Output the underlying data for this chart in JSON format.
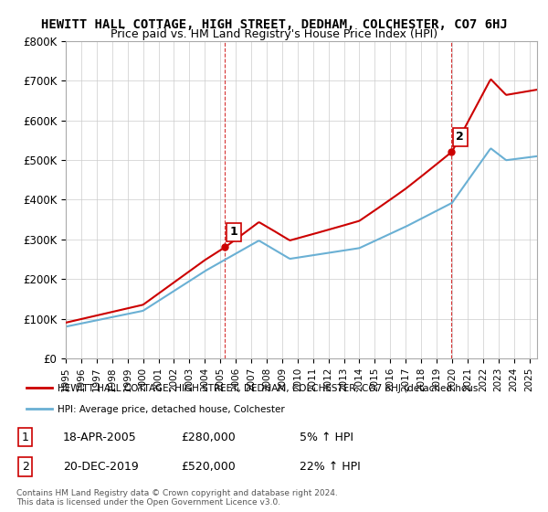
{
  "title": "HEWITT HALL COTTAGE, HIGH STREET, DEDHAM, COLCHESTER, CO7 6HJ",
  "subtitle": "Price paid vs. HM Land Registry's House Price Index (HPI)",
  "ylabel_ticks": [
    "£0",
    "£100K",
    "£200K",
    "£300K",
    "£400K",
    "£500K",
    "£600K",
    "£700K",
    "£800K"
  ],
  "ylim": [
    0,
    800000
  ],
  "xlim_start": 1995.0,
  "xlim_end": 2025.5,
  "hpi_color": "#6ab0d4",
  "price_color": "#cc0000",
  "marker1_year": 2005.3,
  "marker1_value": 280000,
  "marker2_year": 2019.96,
  "marker2_value": 520000,
  "marker1_label": "1",
  "marker2_label": "2",
  "legend_line1": "HEWITT HALL COTTAGE, HIGH STREET, DEDHAM, COLCHESTER, CO7 6HJ (detached hous",
  "legend_line2": "HPI: Average price, detached house, Colchester",
  "table_row1_num": "1",
  "table_row1_date": "18-APR-2005",
  "table_row1_price": "£280,000",
  "table_row1_hpi": "5% ↑ HPI",
  "table_row2_num": "2",
  "table_row2_date": "20-DEC-2019",
  "table_row2_price": "£520,000",
  "table_row2_hpi": "22% ↑ HPI",
  "footer": "Contains HM Land Registry data © Crown copyright and database right 2024.\nThis data is licensed under the Open Government Licence v3.0.",
  "bg_color": "#ffffff",
  "grid_color": "#cccccc",
  "dashed_line_color": "#cc0000"
}
